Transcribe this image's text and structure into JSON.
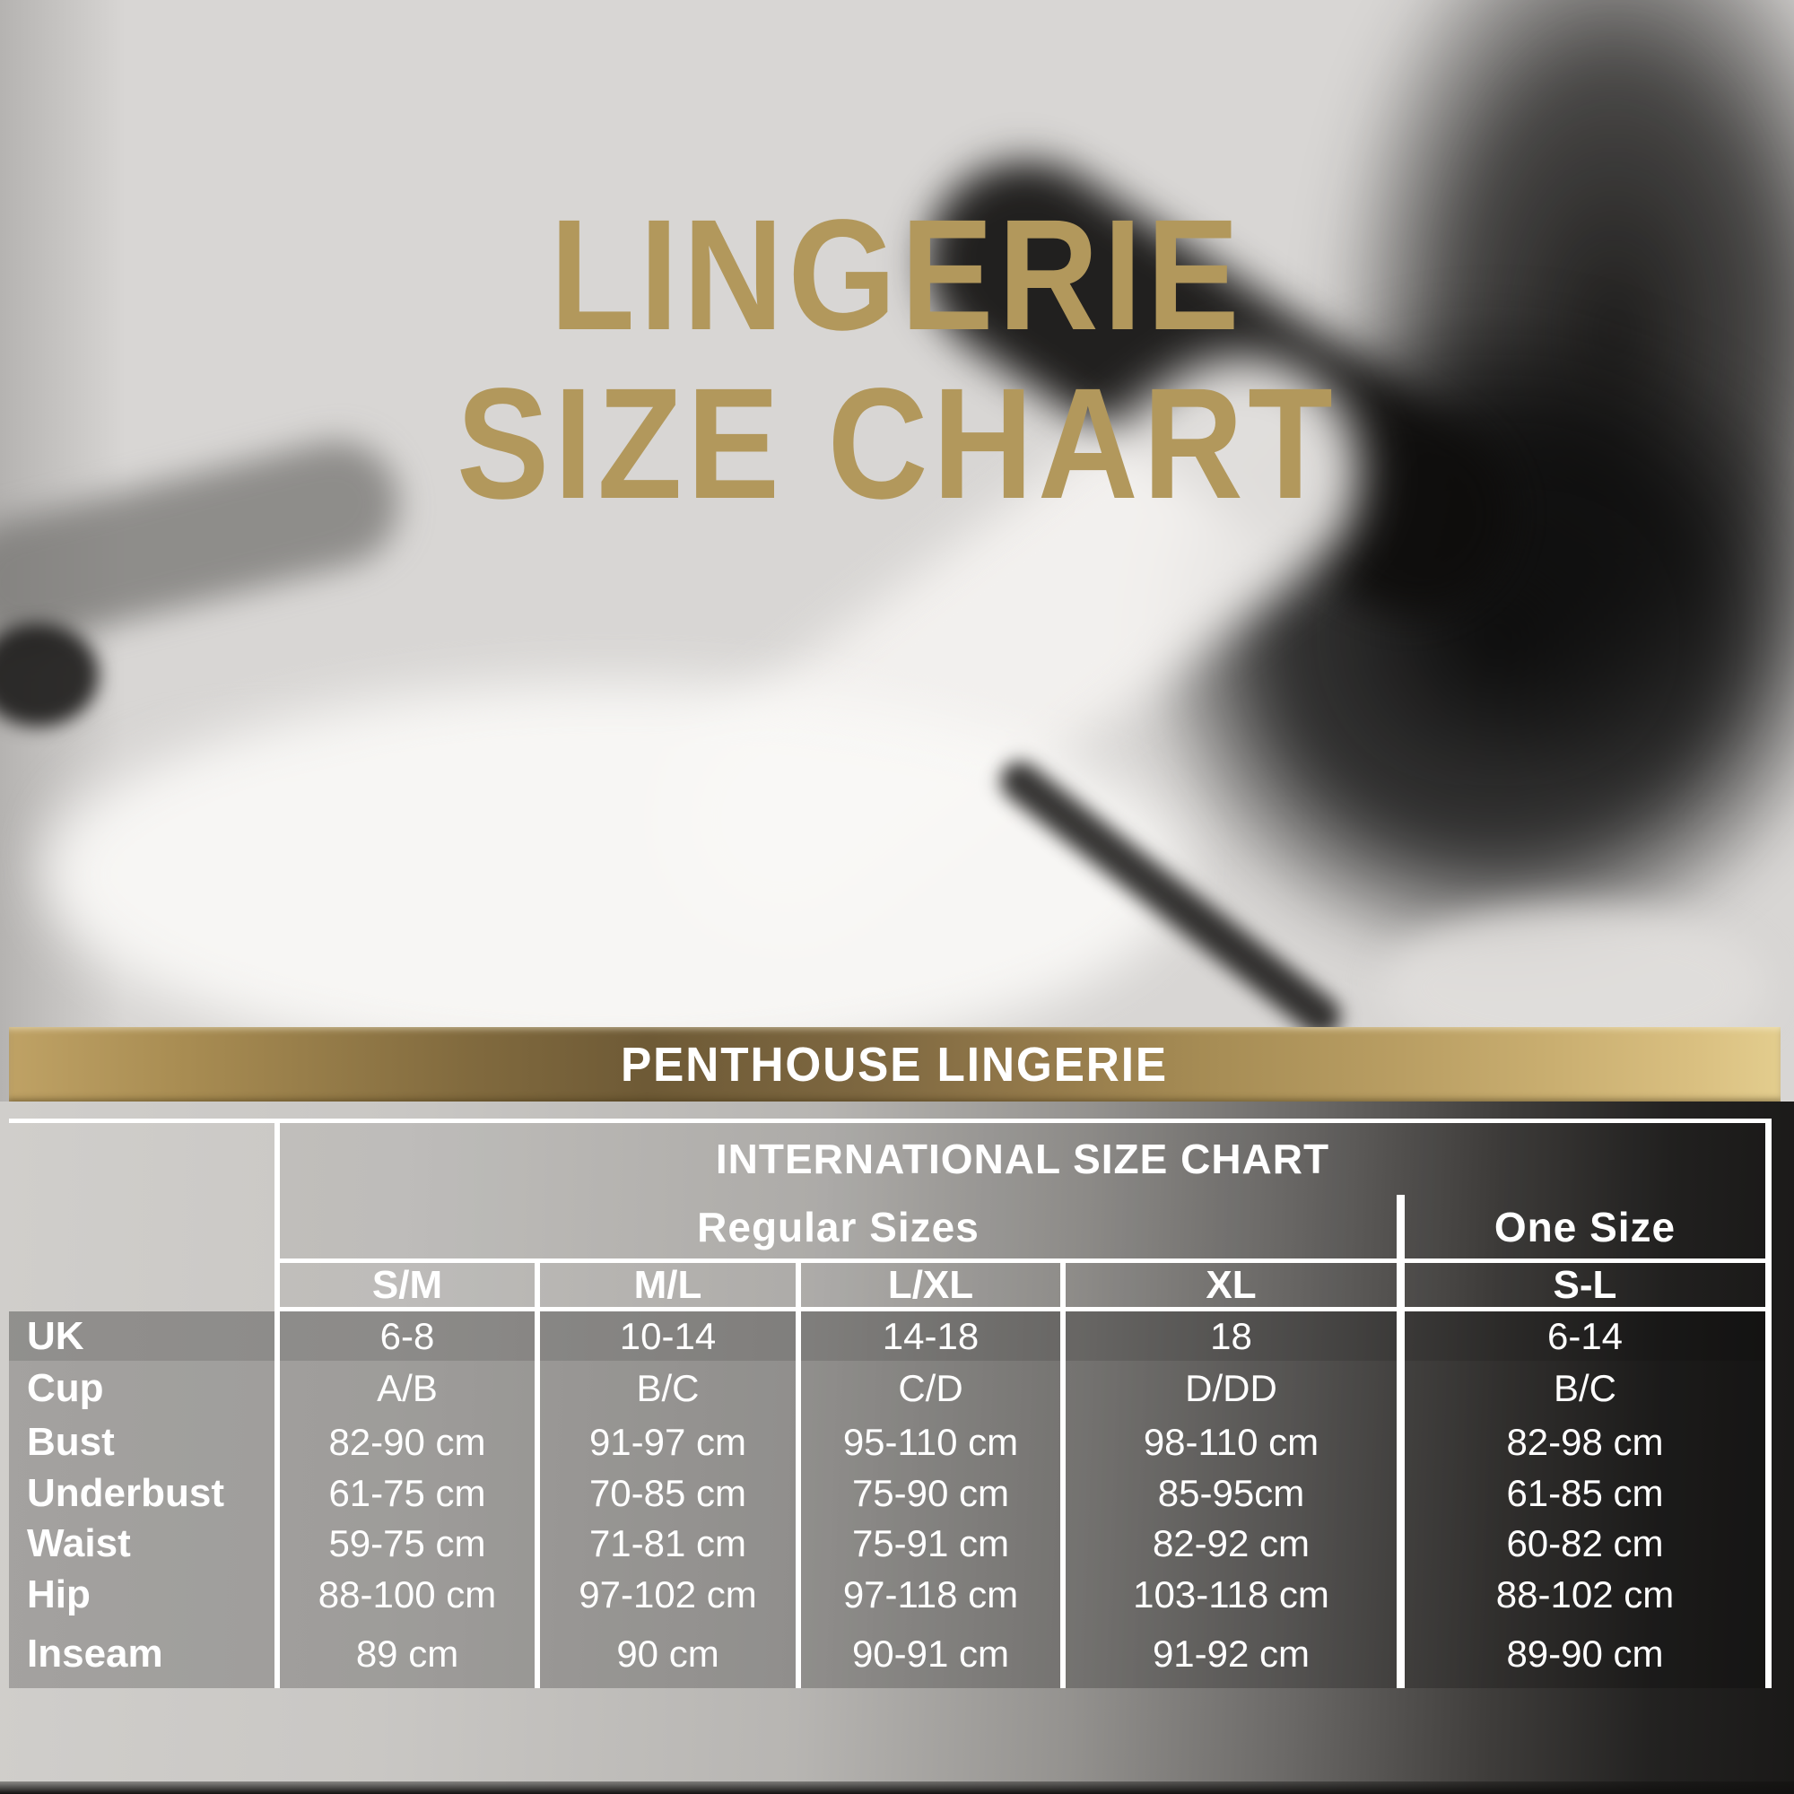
{
  "title": {
    "line1": "LINGERIE",
    "line2": "SIZE CHART"
  },
  "banner": {
    "label": "PENTHOUSE LINGERIE"
  },
  "table": {
    "header": "INTERNATIONAL SIZE CHART",
    "group_regular": "Regular Sizes",
    "group_one_size": "One Size",
    "size_headers": [
      "S/M",
      "M/L",
      "L/XL",
      "XL",
      "S-L"
    ],
    "rows": [
      {
        "label": "UK",
        "values": [
          "6-8",
          "10-14",
          "14-18",
          "18",
          "6-14"
        ]
      },
      {
        "label": "Cup",
        "values": [
          "A/B",
          "B/C",
          "C/D",
          "D/DD",
          "B/C"
        ]
      },
      {
        "label": "Bust",
        "values": [
          "82-90 cm",
          "91-97 cm",
          "95-110 cm",
          "98-110 cm",
          "82-98 cm"
        ]
      },
      {
        "label": "Underbust",
        "values": [
          "61-75 cm",
          "70-85 cm",
          "75-90 cm",
          "85-95cm",
          "61-85 cm"
        ]
      },
      {
        "label": "Waist",
        "values": [
          "59-75 cm",
          "71-81 cm",
          "75-91 cm",
          "82-92 cm",
          "60-82 cm"
        ]
      },
      {
        "label": "Hip",
        "values": [
          "88-100 cm",
          "97-102 cm",
          "97-118 cm",
          "103-118 cm",
          "88-102 cm"
        ]
      },
      {
        "label": "Inseam",
        "values": [
          "89 cm",
          "90 cm",
          "90-91 cm",
          "91-92 cm",
          "89-90 cm"
        ]
      }
    ]
  },
  "colors": {
    "accent_gold": "#b2985c",
    "banner_gold_dark": "#6e5a36",
    "banner_gold_light": "#e3cd8e",
    "table_line": "#ffffff"
  },
  "chart_data": {
    "type": "table",
    "title": "LINGERIE SIZE CHART",
    "subtitle": "PENTHOUSE LINGERIE",
    "table_header": "INTERNATIONAL SIZE CHART",
    "column_groups": [
      {
        "label": "Regular Sizes",
        "columns": [
          "S/M",
          "M/L",
          "L/XL",
          "XL"
        ]
      },
      {
        "label": "One Size",
        "columns": [
          "S-L"
        ]
      }
    ],
    "columns": [
      "S/M",
      "M/L",
      "L/XL",
      "XL",
      "S-L"
    ],
    "row_labels": [
      "UK",
      "Cup",
      "Bust",
      "Underbust",
      "Waist",
      "Hip",
      "Inseam"
    ],
    "cells": [
      [
        "6-8",
        "10-14",
        "14-18",
        "18",
        "6-14"
      ],
      [
        "A/B",
        "B/C",
        "C/D",
        "D/DD",
        "B/C"
      ],
      [
        "82-90 cm",
        "91-97 cm",
        "95-110 cm",
        "98-110 cm",
        "82-98 cm"
      ],
      [
        "61-75 cm",
        "70-85 cm",
        "75-90 cm",
        "85-95cm",
        "61-85 cm"
      ],
      [
        "59-75 cm",
        "71-81 cm",
        "75-91 cm",
        "82-92 cm",
        "60-82 cm"
      ],
      [
        "88-100 cm",
        "97-102 cm",
        "97-118 cm",
        "103-118 cm",
        "88-102 cm"
      ],
      [
        "89 cm",
        "90 cm",
        "90-91 cm",
        "91-92 cm",
        "89-90 cm"
      ]
    ]
  }
}
